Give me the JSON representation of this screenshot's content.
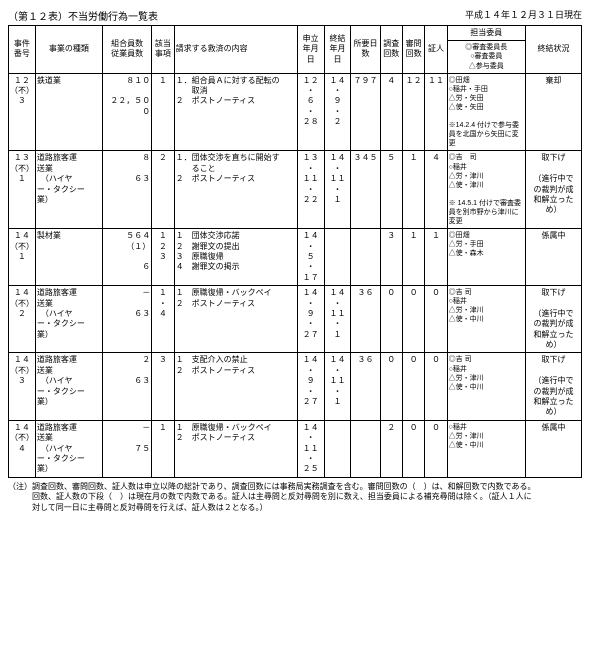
{
  "meta": {
    "table_label": "（第１２表）不当労働行為一覧表",
    "as_of": "平成１４年１２月３１日現在"
  },
  "headers": {
    "case_no": "事件番号",
    "biz_type": "事業の種類",
    "members": "組合員数\n従業員数",
    "item": "該当事項",
    "relief": "請求する救済の内容",
    "app_date": "申立年月日",
    "end_date": "終結年月日",
    "days": "所要日数",
    "invest": "調査回数",
    "hearing": "審問回数",
    "witness": "証人",
    "committee_group": "担当委員",
    "committee": "◎審査委員長\n○審査委員\n△参与委員",
    "status": "終結状況"
  },
  "rows": [
    {
      "case_no": "１２\n（不）\n３",
      "biz_type": "鉄道業",
      "members_top": "８１０",
      "members_bottom": "２２，５００",
      "item": "１",
      "relief": "１．組合員Ａに対する配転の\n　　取消\n２　ポストノーティス",
      "app_date": "１２\n・\n６\n・\n２８",
      "end_date": "１４\n・\n９\n・\n２",
      "days": "７９７",
      "invest": "４",
      "hearing": "１２",
      "witness": "１１",
      "committee": "◎田畑\n○稲井・手田\n△労・矢田\n△使・矢田\n\n※14.2.4 付けで参与委員を北国から矢田に変更",
      "status": "棄却"
    },
    {
      "case_no": "１３\n（不）\n１",
      "biz_type": "道路旅客運\n送業\n　（ハイヤ\nー・タクシー\n業）",
      "members_top": "８",
      "members_bottom": "６３",
      "item": "２",
      "relief": "１．団体交渉を直ちに開始す\n　　ること\n２　ポストノーティス",
      "app_date": "１３\n・\n１１\n・\n２２",
      "end_date": "１４\n・\n１１\n・\n１",
      "days": "３４５",
      "invest": "５",
      "hearing": "１",
      "witness": "４",
      "committee": "◎吉　司\n○稲井\n△労・津川\n△使・津川\n\n※ 14.5.1 付けで審査委員を別市野から津川に変更",
      "status": "取下げ\n\n（進行中で\nの裁判が成\n和解立った\nめ）"
    },
    {
      "case_no": "１４\n（不）\n１",
      "biz_type": "製材業",
      "members_top": "５６４\n（１）",
      "members_bottom": "６",
      "item": "１\n２\n３",
      "relief": "１　団体交渉応諾\n２　謝罪文の提出\n３　原職復帰\n４　謝罪文の掲示",
      "app_date": "１４\n・\n５\n・\n１７",
      "end_date": "",
      "days": "",
      "invest": "３",
      "hearing": "１",
      "witness": "１",
      "committee": "◎田畑\n△労・手田\n△使・森木",
      "status": "係属中"
    },
    {
      "case_no": "１４\n（不）\n２",
      "biz_type": "道路旅客運\n送業\n　（ハイヤ\nー・タクシー\n業）",
      "members_top": "－",
      "members_bottom": "６３",
      "item": "１\n・\n４",
      "relief": "１　原職復帰・バックペイ\n２　ポストノーティス",
      "app_date": "１４\n・\n９\n・\n２７",
      "end_date": "１４\n・\n１１\n・\n１",
      "days": "３６",
      "invest": "０",
      "hearing": "０",
      "witness": "０",
      "committee": "◎吉 司\n○稲井\n△労・津川\n△使・中川",
      "status": "取下げ\n\n（進行中で\nの裁判が成\n和解立った\nめ）"
    },
    {
      "case_no": "１４\n（不）\n３",
      "biz_type": "道路旅客運\n送業\n　（ハイヤ\nー・タクシー\n業）",
      "members_top": "２",
      "members_bottom": "６３",
      "item": "３",
      "relief": "１　支配介入の禁止\n２　ポストノーティス",
      "app_date": "１４\n・\n９\n・\n２７",
      "end_date": "１４\n・\n１１\n・\n１",
      "days": "３６",
      "invest": "０",
      "hearing": "０",
      "witness": "０",
      "committee": "◎吉 司\n○稲井\n△労・津川\n△使・中川",
      "status": "取下げ\n\n（進行中で\nの裁判が成\n和解立った\nめ）"
    },
    {
      "case_no": "１４\n（不）\n４",
      "biz_type": "道路旅客運\n送業\n　（ハイヤ\nー・タクシー\n業）",
      "members_top": "－",
      "members_bottom": "７５",
      "item": "１",
      "relief": "１　原職復帰・バックペイ\n２　ポストノーティス",
      "app_date": "１４\n・\n１１\n・\n２５",
      "end_date": "",
      "days": "",
      "invest": "２",
      "hearing": "０",
      "witness": "０",
      "committee": "○稲井\n△労・津川\n△使・中川",
      "status": "係属中"
    }
  ],
  "note": "（注）調査回数、審問回数、証人数は申立以降の総計であり、調査回数には事務局実務調査を含む。審問回数の（　）は、和解回数で内数である。\n　　　回数、証人数の下段（　）は現在月の数で内数である。証人は主尋問と反対尋問を別に数え、担当委員による補充尋問は除く。（証人１人に\n　　　対して同一日に主尋問と反対尋問を行えば、証人数は２となる。）"
}
